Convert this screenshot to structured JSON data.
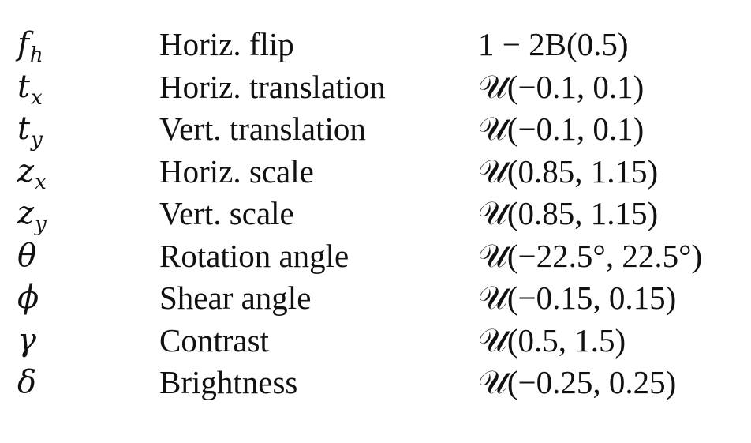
{
  "table": {
    "rows": [
      {
        "symbol": "f",
        "subscript": "h",
        "name": "Horiz. flip",
        "distribution": "1 − 2B(0.5)"
      },
      {
        "symbol": "t",
        "subscript": "x",
        "name": "Horiz. translation",
        "distribution": "𝒰(−0.1, 0.1)"
      },
      {
        "symbol": "t",
        "subscript": "y",
        "name": "Vert. translation",
        "distribution": "𝒰(−0.1, 0.1)"
      },
      {
        "symbol": "z",
        "subscript": "x",
        "name": "Horiz. scale",
        "distribution": "𝒰(0.85, 1.15)"
      },
      {
        "symbol": "z",
        "subscript": "y",
        "name": "Vert. scale",
        "distribution": "𝒰(0.85, 1.15)"
      },
      {
        "symbol": "θ",
        "subscript": "",
        "name": "Rotation angle",
        "distribution": "𝒰(−22.5°, 22.5°)"
      },
      {
        "symbol": "ϕ",
        "subscript": "",
        "name": "Shear angle",
        "distribution": "𝒰(−0.15, 0.15)"
      },
      {
        "symbol": "γ",
        "subscript": "",
        "name": "Contrast",
        "distribution": "𝒰(0.5, 1.5)"
      },
      {
        "symbol": "δ",
        "subscript": "",
        "name": "Brightness",
        "distribution": "𝒰(−0.25, 0.25)"
      }
    ]
  }
}
